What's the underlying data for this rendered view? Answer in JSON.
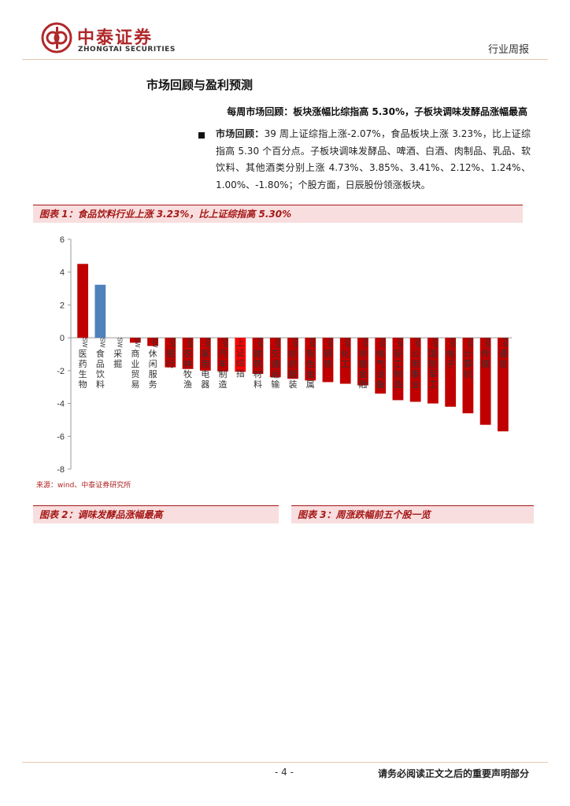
{
  "header": {
    "brand_cn": "中泰证券",
    "brand_en": "ZHONGTAI SECURITIES",
    "doc_type": "行业周报"
  },
  "section_title": "市场回顾与盈利预测",
  "subheading": "每周市场回顾：板块涨幅比综指高 5.30%，子板块调味发酵品涨幅最高",
  "body": {
    "lead": "市场回顾：",
    "text": "39 周上证综指上涨-2.07%，食品板块上涨 3.23%，比上证综指高 5.30 个百分点。子板块调味发酵品、啤酒、白酒、肉制品、乳品、软饮料、其他酒类分别上涨 4.73%、3.85%、3.41%、2.12%、1.24%、1.00%、-1.80%；个股方面，日辰股份领涨板块。"
  },
  "figures": {
    "fig1_title": "图表 1：食品饮料行业上涨 3.23%，比上证综指高 5.30%",
    "fig1_source": "来源：wind、中泰证券研究所",
    "fig2_title": "图表 2：调味发酵品涨幅最高",
    "fig3_title": "图表 3：周涨跌幅前五个股一览"
  },
  "footer": {
    "page": "- 4 -",
    "disclaimer": "请务必阅读正文之后的重要声明部分"
  },
  "colors": {
    "brand_red": "#b0282a",
    "bar_red": "#c00000",
    "bar_blue": "#4f81bd",
    "bar_highlight": "#ff0000"
  },
  "chart_data": {
    "type": "bar",
    "ylim": [
      -8,
      6
    ],
    "yticks": [
      6,
      4,
      2,
      0,
      -2,
      -4,
      -6,
      -8
    ],
    "grid": false,
    "categories": [
      "SW医药生物",
      "SW食品饮料",
      "SW采掘",
      "SW商业贸易",
      "SW休闲服务",
      "SW银行",
      "SW农林牧渔",
      "SW家用电器",
      "SW汽车制造",
      "上证综指",
      "SW建筑材料",
      "SW交通运输",
      "SW纺织服装",
      "SW有色金属",
      "SW钢铁",
      "SW化工",
      "SW非银金融",
      "SW电气设备",
      "SW轻工制造",
      "SW公用事业",
      "SW国防军工",
      "SW电子",
      "SW计算机",
      "SW传媒",
      "SW通信"
    ],
    "values": [
      4.5,
      3.23,
      0.0,
      -0.3,
      -0.5,
      -1.8,
      -1.9,
      -2.0,
      -2.05,
      -2.07,
      -2.2,
      -2.4,
      -2.5,
      -2.6,
      -2.7,
      -2.8,
      -2.9,
      -3.4,
      -3.8,
      -3.9,
      -4.0,
      -4.2,
      -4.6,
      -5.3,
      -5.7
    ]
  }
}
